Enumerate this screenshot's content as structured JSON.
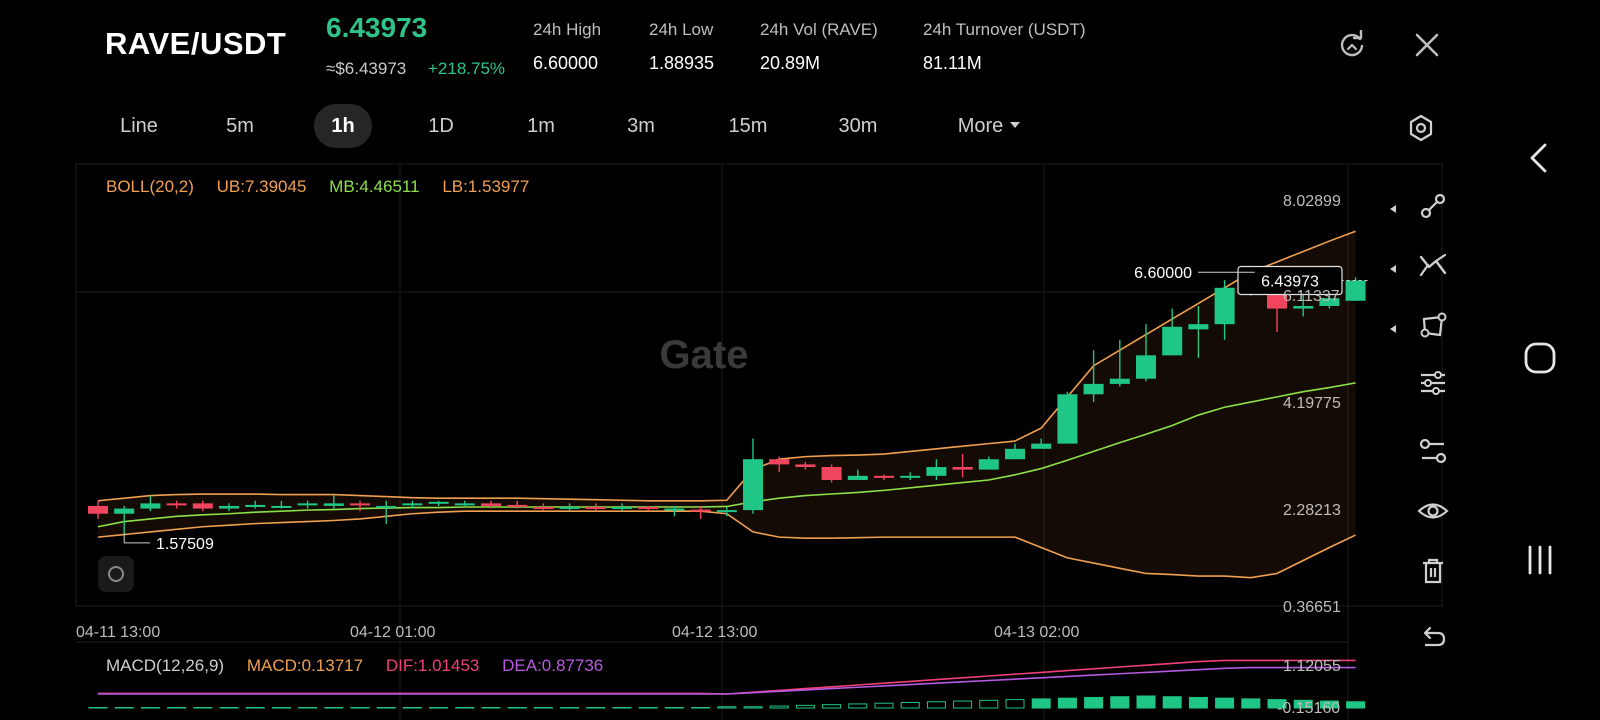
{
  "header": {
    "pair": "RAVE/USDT",
    "last_price": "6.43973",
    "usd_price": "≈$6.43973",
    "change": "+218.75%",
    "stats": [
      {
        "label": "24h   High",
        "value": "6.60000"
      },
      {
        "label": "24h   Low",
        "value": "1.88935"
      },
      {
        "label": "24h   Vol (RAVE)",
        "value": "20.89M"
      },
      {
        "label": "24h   Turnover (USDT)",
        "value": "81.11M"
      }
    ],
    "icons": [
      "refresh-icon",
      "close-icon"
    ]
  },
  "tabs": [
    {
      "label": "Line"
    },
    {
      "label": "5m"
    },
    {
      "label": "1h",
      "active": true
    },
    {
      "label": "1D"
    },
    {
      "label": "1m"
    },
    {
      "label": "3m"
    },
    {
      "label": "15m"
    },
    {
      "label": "30m"
    },
    {
      "label": "More"
    }
  ],
  "indicators": {
    "boll": {
      "name": "BOLL(20,2)",
      "ub": "UB:7.39045",
      "mb": "MB:4.46511",
      "lb": "LB:1.53977"
    },
    "macd": {
      "name": "MACD(12,26,9)",
      "macd": "MACD:0.13717",
      "dif": "DIF:1.01453",
      "dea": "DEA:0.87736"
    }
  },
  "chart_data": {
    "type": "candlestick",
    "y_ticks": [
      "8.02899",
      "6.11337",
      "4.19775",
      "2.28213",
      "0.36651"
    ],
    "ylim": [
      0.36651,
      8.02899
    ],
    "x_ticks": [
      "04-11 13:00",
      "04-12 01:00",
      "04-12 13:00",
      "04-13 02:00"
    ],
    "macd_ticks": [
      "1.12055",
      "-0.15160"
    ],
    "current_price_label": "6.43973",
    "high_marker_label": "6.60000",
    "low_marker_label": "1.57509",
    "watermark": "Gate",
    "candles": [
      [
        2.1,
        1.95,
        2.2,
        1.85
      ],
      [
        1.95,
        2.05,
        2.1,
        1.55
      ],
      [
        2.05,
        2.15,
        2.3,
        2.0
      ],
      [
        2.15,
        2.12,
        2.2,
        2.05
      ],
      [
        2.15,
        2.05,
        2.2,
        2.0
      ],
      [
        2.05,
        2.1,
        2.15,
        2.0
      ],
      [
        2.08,
        2.12,
        2.2,
        2.05
      ],
      [
        2.1,
        2.1,
        2.2,
        2.05
      ],
      [
        2.12,
        2.15,
        2.2,
        2.05
      ],
      [
        2.1,
        2.15,
        2.3,
        2.05
      ],
      [
        2.15,
        2.12,
        2.2,
        2.0
      ],
      [
        2.1,
        2.1,
        2.2,
        1.75
      ],
      [
        2.12,
        2.15,
        2.2,
        2.05
      ],
      [
        2.15,
        2.18,
        2.2,
        2.1
      ],
      [
        2.15,
        2.15,
        2.2,
        2.1
      ],
      [
        2.15,
        2.1,
        2.2,
        2.05
      ],
      [
        2.12,
        2.1,
        2.2,
        2.05
      ],
      [
        2.08,
        2.05,
        2.15,
        2.0
      ],
      [
        2.05,
        2.08,
        2.15,
        2.0
      ],
      [
        2.08,
        2.05,
        2.15,
        2.0
      ],
      [
        2.05,
        2.08,
        2.15,
        2.0
      ],
      [
        2.08,
        2.05,
        2.1,
        2.0
      ],
      [
        2.05,
        2.05,
        2.1,
        1.9
      ],
      [
        2.03,
        2.0,
        2.1,
        1.85
      ],
      [
        2.0,
        2.02,
        2.08,
        1.9
      ],
      [
        2.02,
        3.0,
        3.4,
        1.95
      ],
      [
        3.0,
        2.9,
        3.05,
        2.75
      ],
      [
        2.9,
        2.85,
        2.95,
        2.8
      ],
      [
        2.85,
        2.6,
        2.9,
        2.55
      ],
      [
        2.6,
        2.68,
        2.8,
        2.6
      ],
      [
        2.68,
        2.65,
        2.7,
        2.6
      ],
      [
        2.65,
        2.68,
        2.75,
        2.6
      ],
      [
        2.68,
        2.85,
        3.0,
        2.6
      ],
      [
        2.85,
        2.8,
        3.1,
        2.65
      ],
      [
        2.8,
        3.0,
        3.05,
        2.8
      ],
      [
        3.0,
        3.2,
        3.3,
        3.0
      ],
      [
        3.2,
        3.3,
        3.4,
        3.2
      ],
      [
        3.3,
        4.25,
        4.3,
        3.3
      ],
      [
        4.25,
        4.45,
        5.1,
        4.1
      ],
      [
        4.45,
        4.55,
        5.3,
        4.4
      ],
      [
        4.55,
        5.0,
        5.6,
        4.5
      ],
      [
        5.0,
        5.55,
        5.9,
        5.0
      ],
      [
        5.5,
        5.6,
        5.95,
        4.95
      ],
      [
        5.6,
        6.3,
        6.45,
        5.3
      ],
      [
        6.3,
        6.3,
        6.6,
        6.15
      ],
      [
        6.3,
        5.9,
        6.25,
        5.45
      ],
      [
        5.9,
        5.95,
        6.45,
        5.75
      ],
      [
        5.95,
        6.1,
        6.3,
        5.9
      ],
      [
        6.05,
        6.44,
        6.5,
        6.05
      ]
    ],
    "ub": [
      2.2,
      2.25,
      2.3,
      2.32,
      2.33,
      2.33,
      2.33,
      2.32,
      2.32,
      2.32,
      2.3,
      2.28,
      2.26,
      2.25,
      2.25,
      2.25,
      2.25,
      2.24,
      2.23,
      2.22,
      2.21,
      2.2,
      2.2,
      2.2,
      2.21,
      2.8,
      3.0,
      3.05,
      3.07,
      3.08,
      3.1,
      3.15,
      3.2,
      3.25,
      3.3,
      3.35,
      3.6,
      4.2,
      4.8,
      5.1,
      5.4,
      5.7,
      6.0,
      6.3,
      6.6,
      6.8,
      7.0,
      7.2,
      7.39
    ],
    "mb": [
      1.7,
      1.8,
      1.85,
      1.9,
      1.93,
      1.95,
      1.98,
      2.0,
      2.02,
      2.03,
      2.05,
      2.06,
      2.07,
      2.07,
      2.08,
      2.08,
      2.08,
      2.08,
      2.08,
      2.08,
      2.08,
      2.08,
      2.08,
      2.08,
      2.09,
      2.18,
      2.25,
      2.3,
      2.33,
      2.36,
      2.4,
      2.45,
      2.5,
      2.55,
      2.6,
      2.7,
      2.82,
      2.98,
      3.15,
      3.32,
      3.48,
      3.65,
      3.85,
      4.0,
      4.1,
      4.2,
      4.3,
      4.38,
      4.47
    ],
    "lb": [
      1.5,
      1.55,
      1.6,
      1.65,
      1.7,
      1.73,
      1.76,
      1.78,
      1.8,
      1.82,
      1.85,
      1.9,
      1.95,
      1.98,
      2.0,
      2.0,
      2.0,
      2.0,
      2.0,
      2.0,
      2.0,
      2.0,
      2.0,
      2.0,
      1.95,
      1.6,
      1.5,
      1.48,
      1.48,
      1.49,
      1.5,
      1.5,
      1.5,
      1.5,
      1.5,
      1.5,
      1.3,
      1.1,
      1.0,
      0.9,
      0.8,
      0.78,
      0.75,
      0.75,
      0.72,
      0.8,
      1.05,
      1.3,
      1.54
    ]
  },
  "toolbar": [
    "drawing-line-icon",
    "trend-icon",
    "shape-icon",
    "indicator-settings-icon",
    "compare-icon",
    "visibility-icon",
    "delete-icon",
    "undo-icon"
  ],
  "nav": [
    "back-icon",
    "home-icon",
    "recents-icon"
  ]
}
